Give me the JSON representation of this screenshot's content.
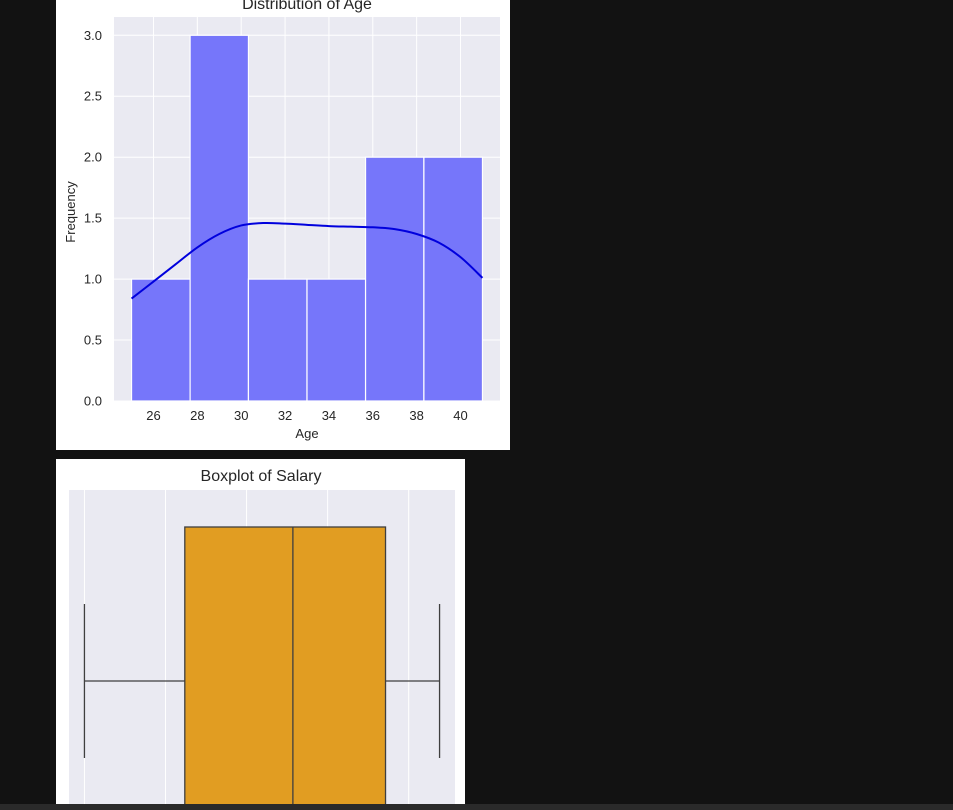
{
  "chart_data": [
    {
      "type": "bar",
      "title": "Distribution of Age",
      "xlabel": "Age",
      "ylabel": "Frequency",
      "bins": [
        {
          "start": 25,
          "end": 27.67,
          "count": 1
        },
        {
          "start": 27.67,
          "end": 30.33,
          "count": 3
        },
        {
          "start": 30.33,
          "end": 33,
          "count": 1
        },
        {
          "start": 33,
          "end": 35.67,
          "count": 1
        },
        {
          "start": 35.67,
          "end": 38.33,
          "count": 2
        },
        {
          "start": 38.33,
          "end": 41,
          "count": 2
        }
      ],
      "kde": {
        "x": [
          25,
          26,
          27,
          28,
          29,
          30,
          31,
          32,
          33,
          34,
          35,
          36,
          37,
          38,
          39,
          40,
          41
        ],
        "y": [
          0.84,
          0.98,
          1.12,
          1.26,
          1.37,
          1.44,
          1.46,
          1.455,
          1.445,
          1.435,
          1.43,
          1.425,
          1.41,
          1.37,
          1.3,
          1.18,
          1.01
        ]
      },
      "xticks": [
        "26",
        "28",
        "30",
        "32",
        "34",
        "36",
        "38",
        "40"
      ],
      "yticks": [
        "0.0",
        "0.5",
        "1.0",
        "1.5",
        "2.0",
        "2.5",
        "3.0"
      ],
      "xlim": [
        24.2,
        41.8
      ],
      "ylim": [
        0,
        3.15
      ],
      "grid": true,
      "bar_color": "#7676fa",
      "kde_color": "#0000dd",
      "background": "#eaeaf2"
    },
    {
      "type": "box",
      "title": "Boxplot of Salary",
      "orientation": "horizontal",
      "whisker_low": 0.04,
      "q1": 0.3,
      "median": 0.58,
      "q3": 0.82,
      "whisker_high": 0.96,
      "box_color": "#e19d22",
      "background": "#eaeaf2",
      "grid": true
    }
  ]
}
